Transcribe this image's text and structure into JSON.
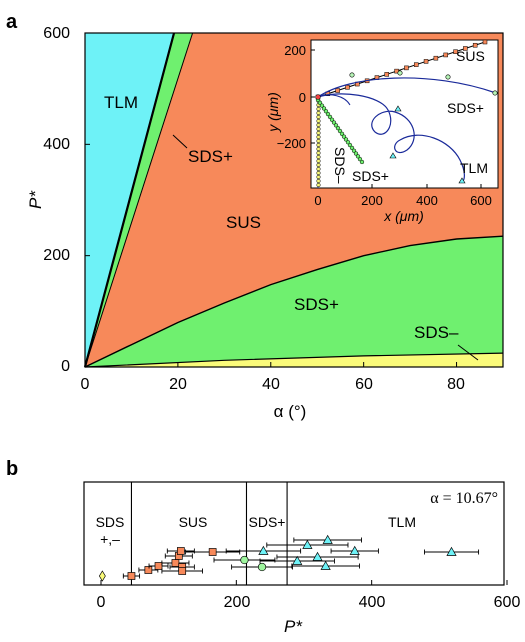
{
  "panel_a": {
    "label": "a",
    "xlabel": "α (°)",
    "ylabel": "P*",
    "xticks": [
      "0",
      "20",
      "40",
      "60",
      "80"
    ],
    "yticks": [
      "0",
      "200",
      "400",
      "600"
    ],
    "region_labels": {
      "tlm": "TLM",
      "sds_plus_upper": "SDS+",
      "sus": "SUS",
      "sds_plus_lower": "SDS+",
      "sds_minus": "SDS–"
    },
    "colors": {
      "tlm": "#6ef2f7",
      "sds_plus": "#6ff06f",
      "sus": "#f7895a",
      "sds_minus": "#fbfb7a"
    },
    "inset": {
      "xlabel": "x (μm)",
      "ylabel": "y (μm)",
      "xticks": [
        "0",
        "200",
        "400",
        "600"
      ],
      "yticks": [
        "200",
        "0",
        "−200"
      ],
      "labels": {
        "sus": "SUS",
        "sds_plus_right": "SDS+",
        "sds_minus": "SDS–",
        "sds_plus_bottom": "SDS+",
        "tlm": "TLM"
      }
    }
  },
  "panel_b": {
    "label": "b",
    "xlabel": "P*",
    "xticks": [
      "0",
      "200",
      "400",
      "600"
    ],
    "alpha_annotation": "α = 10.67°",
    "region_labels": {
      "sds_pm_top": "SDS",
      "sds_pm_bottom": "+,–",
      "sus": "SUS",
      "sds_plus": "SDS+",
      "tlm": "TLM"
    },
    "boundaries": [
      45,
      215,
      275
    ]
  },
  "chart_data": [
    {
      "type": "area",
      "xlim": [
        0,
        90
      ],
      "ylim": [
        0,
        600
      ],
      "series": [
        {
          "name": "TLM",
          "boundary_upper_slope_p_per_deg": 31.3
        },
        {
          "name": "SDS+",
          "boundary_upper_slope_p_per_deg": 25.9
        },
        {
          "name": "SUS",
          "boundary_x": [
            0,
            10,
            20,
            30,
            40,
            50,
            60,
            70,
            80,
            90
          ],
          "boundary_y": [
            0,
            40,
            80,
            115,
            148,
            175,
            200,
            218,
            230,
            235
          ]
        },
        {
          "name": "SDS–",
          "boundary_x": [
            0,
            30,
            60,
            90
          ],
          "boundary_y": [
            0,
            12,
            20,
            25
          ]
        }
      ]
    },
    {
      "type": "scatter",
      "xlim": [
        0,
        600
      ],
      "points": [
        {
          "type": "SDS+,–",
          "x": 2,
          "xerr": 0
        },
        {
          "type": "SUS",
          "x": 45,
          "xerr": 12
        },
        {
          "type": "SUS",
          "x": 70,
          "xerr": 14
        },
        {
          "type": "SUS",
          "x": 85,
          "xerr": 14
        },
        {
          "type": "SUS",
          "x": 110,
          "xerr": 20
        },
        {
          "type": "SUS",
          "x": 115,
          "xerr": 20
        },
        {
          "type": "SUS",
          "x": 118,
          "xerr": 20
        },
        {
          "type": "SUS",
          "x": 120,
          "xerr": 18
        },
        {
          "type": "SUS",
          "x": 120,
          "xerr": 30
        },
        {
          "type": "SUS",
          "x": 165,
          "xerr": 40
        },
        {
          "type": "SDS+",
          "x": 212,
          "xerr": 45
        },
        {
          "type": "SDS+",
          "x": 238,
          "xerr": 45
        },
        {
          "type": "TLM",
          "x": 240,
          "xerr": 55
        },
        {
          "type": "TLM",
          "x": 290,
          "xerr": 55
        },
        {
          "type": "TLM",
          "x": 305,
          "xerr": 60
        },
        {
          "type": "TLM",
          "x": 320,
          "xerr": 60
        },
        {
          "type": "TLM",
          "x": 332,
          "xerr": 50
        },
        {
          "type": "TLM",
          "x": 335,
          "xerr": 50
        },
        {
          "type": "TLM",
          "x": 375,
          "xerr": 35
        },
        {
          "type": "TLM",
          "x": 518,
          "xerr": 40
        }
      ]
    }
  ]
}
